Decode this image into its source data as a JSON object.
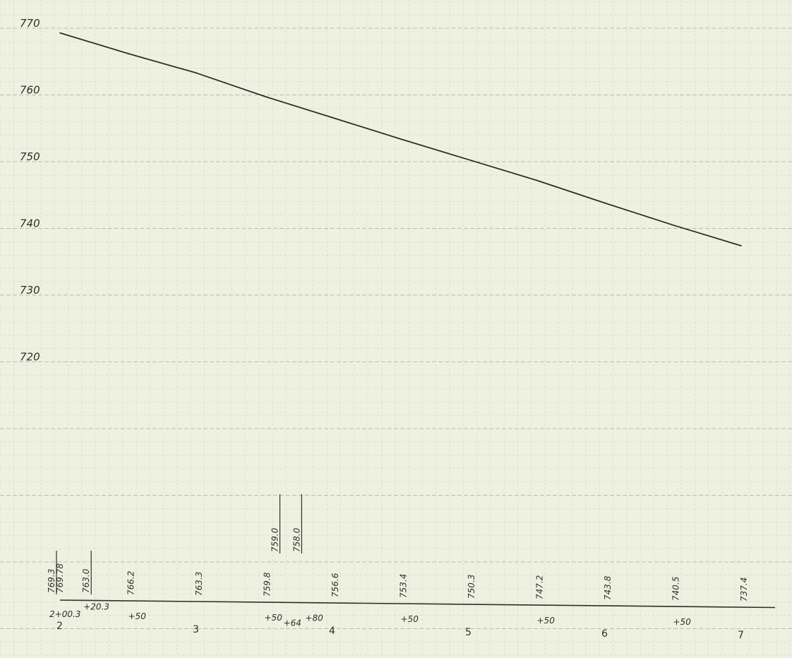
{
  "chart_data": {
    "type": "line",
    "title": "",
    "xlabel": "",
    "ylabel": "",
    "grid": true,
    "ylim": [
      710,
      775
    ],
    "xlim": [
      200,
      700
    ],
    "y_ticks": [
      770,
      760,
      750,
      740,
      730,
      720
    ],
    "x_ticks": [
      200,
      300,
      400,
      500,
      600,
      700
    ],
    "x_tick_labels": [
      "2",
      "3",
      "4",
      "5",
      "6",
      "7"
    ],
    "series": [
      {
        "x": [
          200,
          250,
          300,
          350,
          400,
          450,
          500,
          550,
          600,
          650,
          700
        ],
        "values": [
          769.3,
          766.2,
          763.3,
          759.8,
          756.6,
          753.4,
          750.3,
          747.2,
          743.8,
          740.5,
          737.4
        ]
      }
    ],
    "elevation_labels": [
      {
        "station": 200,
        "text": "769.3"
      },
      {
        "station": 200,
        "text": "769.78"
      },
      {
        "station": 220.3,
        "text": "763.0"
      },
      {
        "station": 250,
        "text": "766.2"
      },
      {
        "station": 300,
        "text": "763.3"
      },
      {
        "station": 350,
        "text": "759.8"
      },
      {
        "station": 364,
        "text": "759.0"
      },
      {
        "station": 380,
        "text": "758.0"
      },
      {
        "station": 400,
        "text": "756.6"
      },
      {
        "station": 450,
        "text": "753.4"
      },
      {
        "station": 500,
        "text": "750.3"
      },
      {
        "station": 550,
        "text": "747.2"
      },
      {
        "station": 600,
        "text": "743.8"
      },
      {
        "station": 650,
        "text": "740.5"
      },
      {
        "station": 700,
        "text": "737.4"
      }
    ],
    "station_labels": [
      {
        "station": 200,
        "text": "2+00.3"
      },
      {
        "station": 220.3,
        "text": "+20.3"
      },
      {
        "station": 250,
        "text": "+50"
      },
      {
        "station": 350,
        "text": "+50"
      },
      {
        "station": 364,
        "text": "+64"
      },
      {
        "station": 380,
        "text": "+80"
      },
      {
        "station": 450,
        "text": "+50"
      },
      {
        "station": 550,
        "text": "+50"
      },
      {
        "station": 650,
        "text": "+50"
      }
    ]
  },
  "colors": {
    "paper": "#eef1df",
    "grid_minor": "#d3d6c7",
    "grid_major": "#b9bcae",
    "ink": "#2e2e2e"
  }
}
